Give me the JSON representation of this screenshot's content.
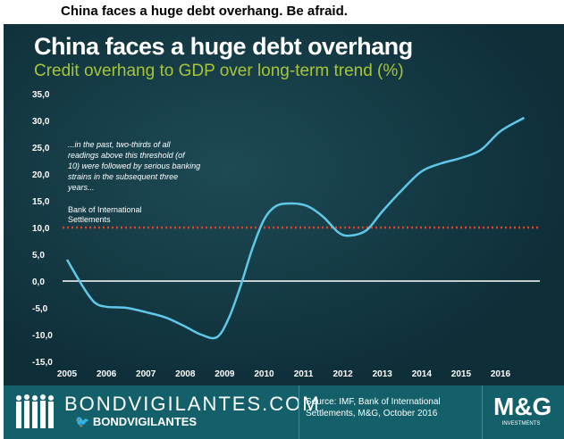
{
  "headline": "China faces a huge debt overhang. Be afraid.",
  "footer": {
    "brand": "BONDVIGILANTES.COM",
    "handle": "BONDVIGILANTES",
    "source": "Source: IMF, Bank of International Settlements, M&G, October 2016",
    "logo": "M&G",
    "logo_sub": "INVESTMENTS"
  },
  "chart_data": {
    "type": "line",
    "title": "China faces a huge debt overhang",
    "subtitle": "Credit overhang to GDP over long-term trend (%)",
    "xlabel": "",
    "ylabel": "",
    "ylim": [
      -15,
      35
    ],
    "xlim": [
      2005,
      2016.7
    ],
    "yticks": [
      "35,0",
      "30,0",
      "25,0",
      "20,0",
      "15,0",
      "10,0",
      "5,0",
      "0,0",
      "-5,0",
      "-10,0",
      "-15,0"
    ],
    "xticks": [
      "2005",
      "2006",
      "2007",
      "2008",
      "2009",
      "2010",
      "2011",
      "2012",
      "2013",
      "2014",
      "2015",
      "2016"
    ],
    "threshold": 10,
    "annotation": "...in the past, two-thirds of all readings above this threshold (of 10) were followed by serious banking strains in the subsequent three years...",
    "annotation_source": "Bank of International Settlements",
    "colors": {
      "line": "#5fc8e8",
      "threshold": "#e0442a",
      "zero": "#ffffff"
    },
    "series": [
      {
        "name": "Credit overhang",
        "x": [
          2005,
          2005.4,
          2005.7,
          2006,
          2006.5,
          2007,
          2007.5,
          2008,
          2008.4,
          2008.8,
          2009.1,
          2009.4,
          2009.7,
          2010,
          2010.3,
          2010.7,
          2011.1,
          2011.5,
          2011.9,
          2012.2,
          2012.6,
          2013,
          2013.5,
          2014,
          2014.5,
          2015,
          2015.5,
          2016,
          2016.6
        ],
        "values": [
          4,
          -1,
          -4,
          -4.8,
          -5,
          -5.8,
          -6.8,
          -8.5,
          -10,
          -10.5,
          -7,
          -1,
          6,
          11.5,
          14,
          14.5,
          14,
          12,
          9,
          8.5,
          9.5,
          13,
          17,
          20.5,
          22,
          23,
          24.5,
          28,
          30.5
        ]
      }
    ]
  }
}
